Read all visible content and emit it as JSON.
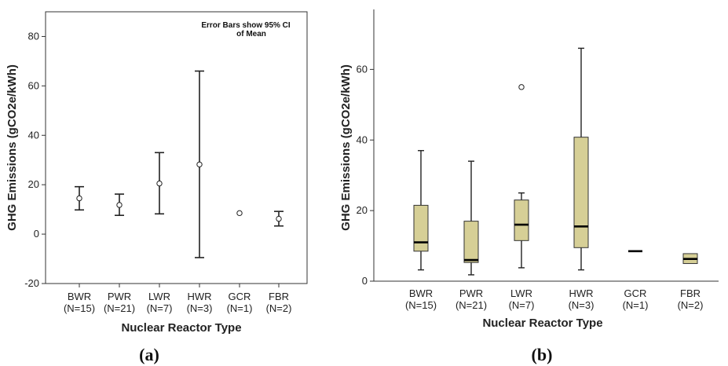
{
  "chart_data": [
    {
      "type": "errorbar",
      "panel_label": "(a)",
      "annotation_lines": [
        "Error Bars show 95% CI",
        "of Mean"
      ],
      "xlabel": "Nuclear Reactor Type",
      "ylabel": "GHG Emissions (gCO2e/kWh)",
      "ylim": [
        -20,
        90
      ],
      "yticks": [
        -20,
        0,
        20,
        40,
        60,
        80
      ],
      "categories": [
        {
          "name": "BWR",
          "n": "(N=15)"
        },
        {
          "name": "PWR",
          "n": "(N=21)"
        },
        {
          "name": "LWR",
          "n": "(N=7)"
        },
        {
          "name": "HWR",
          "n": "(N=3)"
        },
        {
          "name": "GCR",
          "n": "(N=1)"
        },
        {
          "name": "FBR",
          "n": "(N=2)"
        }
      ],
      "mean": [
        14.5,
        11.8,
        20.5,
        28.2,
        8.5,
        6.2
      ],
      "ci_low": [
        9.8,
        7.6,
        8.2,
        -9.5,
        null,
        3.3
      ],
      "ci_high": [
        19.2,
        16.2,
        33.0,
        66.0,
        null,
        9.2
      ],
      "grid": false
    },
    {
      "type": "boxplot",
      "panel_label": "(b)",
      "xlabel": "Nuclear Reactor Type",
      "ylabel": "GHG Emissions (gCO2e/kWh)",
      "ylim": [
        0,
        77
      ],
      "yticks": [
        0,
        20,
        40,
        60
      ],
      "categories": [
        {
          "name": "BWR",
          "n": "(N=15)"
        },
        {
          "name": "PWR",
          "n": "(N=21)"
        },
        {
          "name": "LWR",
          "n": "(N=7)"
        },
        {
          "name": "HWR",
          "n": "(N=3)"
        },
        {
          "name": "GCR",
          "n": "(N=1)"
        },
        {
          "name": "FBR",
          "n": "(N=2)"
        }
      ],
      "min": [
        3.2,
        1.8,
        3.8,
        3.2,
        8.5,
        5.0
      ],
      "q1": [
        8.5,
        5.3,
        11.5,
        9.5,
        8.5,
        5.0
      ],
      "median": [
        11.0,
        6.0,
        16.0,
        15.5,
        8.5,
        6.3
      ],
      "q3": [
        21.5,
        17.0,
        23.0,
        40.8,
        8.5,
        7.8
      ],
      "max": [
        37.0,
        34.0,
        25.0,
        66.0,
        8.5,
        7.8
      ],
      "outliers": [
        [],
        [],
        [
          55.0
        ],
        [],
        [],
        []
      ],
      "box_color": "#d6cf96",
      "grid": false
    }
  ]
}
